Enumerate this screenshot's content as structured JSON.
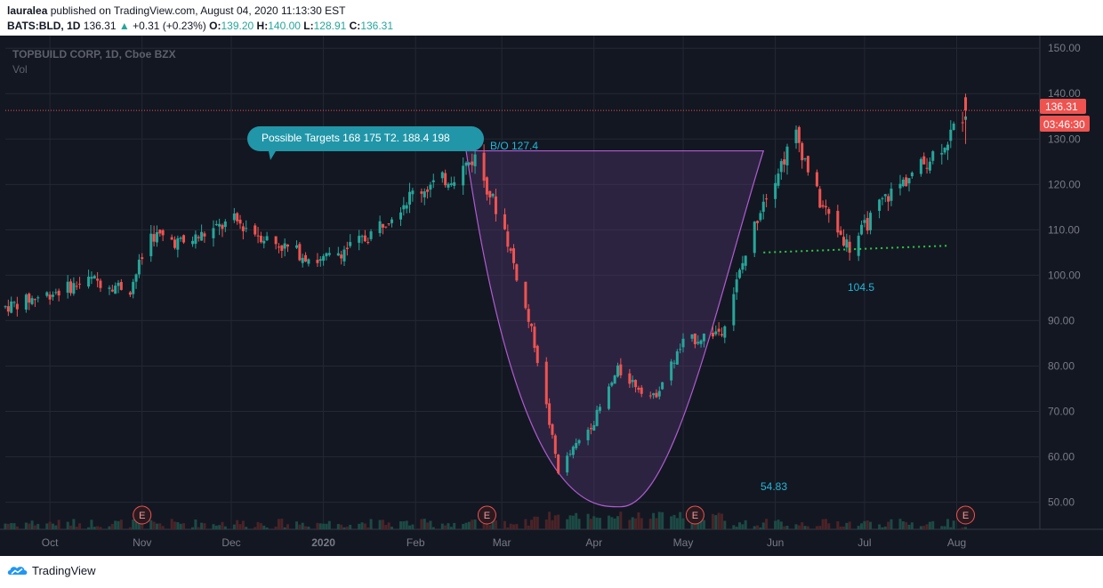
{
  "header": {
    "author": "lauralea",
    "published_text": "published on TradingView.com, August 04, 2020 11:13:30 EST",
    "symbol": "BATS:BLD, 1D",
    "price": "136.31",
    "change": "+0.31 (+0.23%)",
    "o_label": "O:",
    "o_value": "139.20",
    "h_label": "H:",
    "h_value": "140.00",
    "l_label": "L:",
    "l_value": "128.91",
    "c_label": "C:",
    "c_value": "136.31"
  },
  "legend": {
    "title": "TOPBUILD CORP, 1D, Cboe BZX",
    "vol": "Vol"
  },
  "colors": {
    "background": "#131722",
    "up": "#26a69a",
    "down": "#ef5350",
    "cup_fill": "#5c3a7a",
    "cup_line": "#b05cd0",
    "target_box": "#2196a8",
    "support_line": "#2ecc40",
    "annotation_text": "#22b8d8"
  },
  "price_tags": {
    "last": "136.31",
    "countdown": "03:46:30"
  },
  "annotations": {
    "targets": "Possible Targets  168  175  T2.  188.4  198",
    "breakout": "B/O 127.4",
    "support_level": "104.5",
    "bottom_level": "54.83"
  },
  "earnings_marker": "E",
  "footer": {
    "brand": "TradingView"
  },
  "chart_data": {
    "type": "candlestick",
    "title": "TOPBUILD CORP, 1D, Cboe BZX",
    "y_ticks": [
      "150.00",
      "140.00",
      "130.00",
      "120.00",
      "110.00",
      "100.00",
      "90.00",
      "80.00",
      "70.00",
      "60.00",
      "50.00"
    ],
    "ylim": [
      46,
      152
    ],
    "x_ticks": [
      "Oct",
      "Nov",
      "Dec",
      "2020",
      "Feb",
      "Mar",
      "Apr",
      "May",
      "Jun",
      "Jul",
      "Aug"
    ],
    "x_range": [
      "2019-09-16",
      "2020-08-20"
    ],
    "grid": true,
    "closes": [
      {
        "date": "2019-09-16",
        "close": 93
      },
      {
        "date": "2019-10-01",
        "close": 96
      },
      {
        "date": "2019-10-15",
        "close": 99
      },
      {
        "date": "2019-10-28",
        "close": 97
      },
      {
        "date": "2019-11-04",
        "close": 109
      },
      {
        "date": "2019-11-15",
        "close": 107
      },
      {
        "date": "2019-12-02",
        "close": 112
      },
      {
        "date": "2019-12-16",
        "close": 107
      },
      {
        "date": "2019-12-31",
        "close": 103
      },
      {
        "date": "2020-01-15",
        "close": 108
      },
      {
        "date": "2020-01-31",
        "close": 118
      },
      {
        "date": "2020-02-14",
        "close": 122
      },
      {
        "date": "2020-02-21",
        "close": 126
      },
      {
        "date": "2020-03-02",
        "close": 110
      },
      {
        "date": "2020-03-12",
        "close": 85
      },
      {
        "date": "2020-03-20",
        "close": 57
      },
      {
        "date": "2020-04-01",
        "close": 68
      },
      {
        "date": "2020-04-09",
        "close": 79
      },
      {
        "date": "2020-04-21",
        "close": 73
      },
      {
        "date": "2020-05-01",
        "close": 85
      },
      {
        "date": "2020-05-14",
        "close": 88
      },
      {
        "date": "2020-05-28",
        "close": 117
      },
      {
        "date": "2020-06-08",
        "close": 131
      },
      {
        "date": "2020-06-16",
        "close": 116
      },
      {
        "date": "2020-06-26",
        "close": 106
      },
      {
        "date": "2020-07-08",
        "close": 117
      },
      {
        "date": "2020-07-20",
        "close": 124
      },
      {
        "date": "2020-07-29",
        "close": 130
      },
      {
        "date": "2020-08-04",
        "close": 136.31
      }
    ],
    "last_price": 136.31,
    "earnings_dates": [
      "2019-11-01",
      "2020-02-25",
      "2020-05-05",
      "2020-08-04"
    ],
    "levels": {
      "breakout": 127.4,
      "support": 104.5,
      "bottom": 54.83
    }
  }
}
